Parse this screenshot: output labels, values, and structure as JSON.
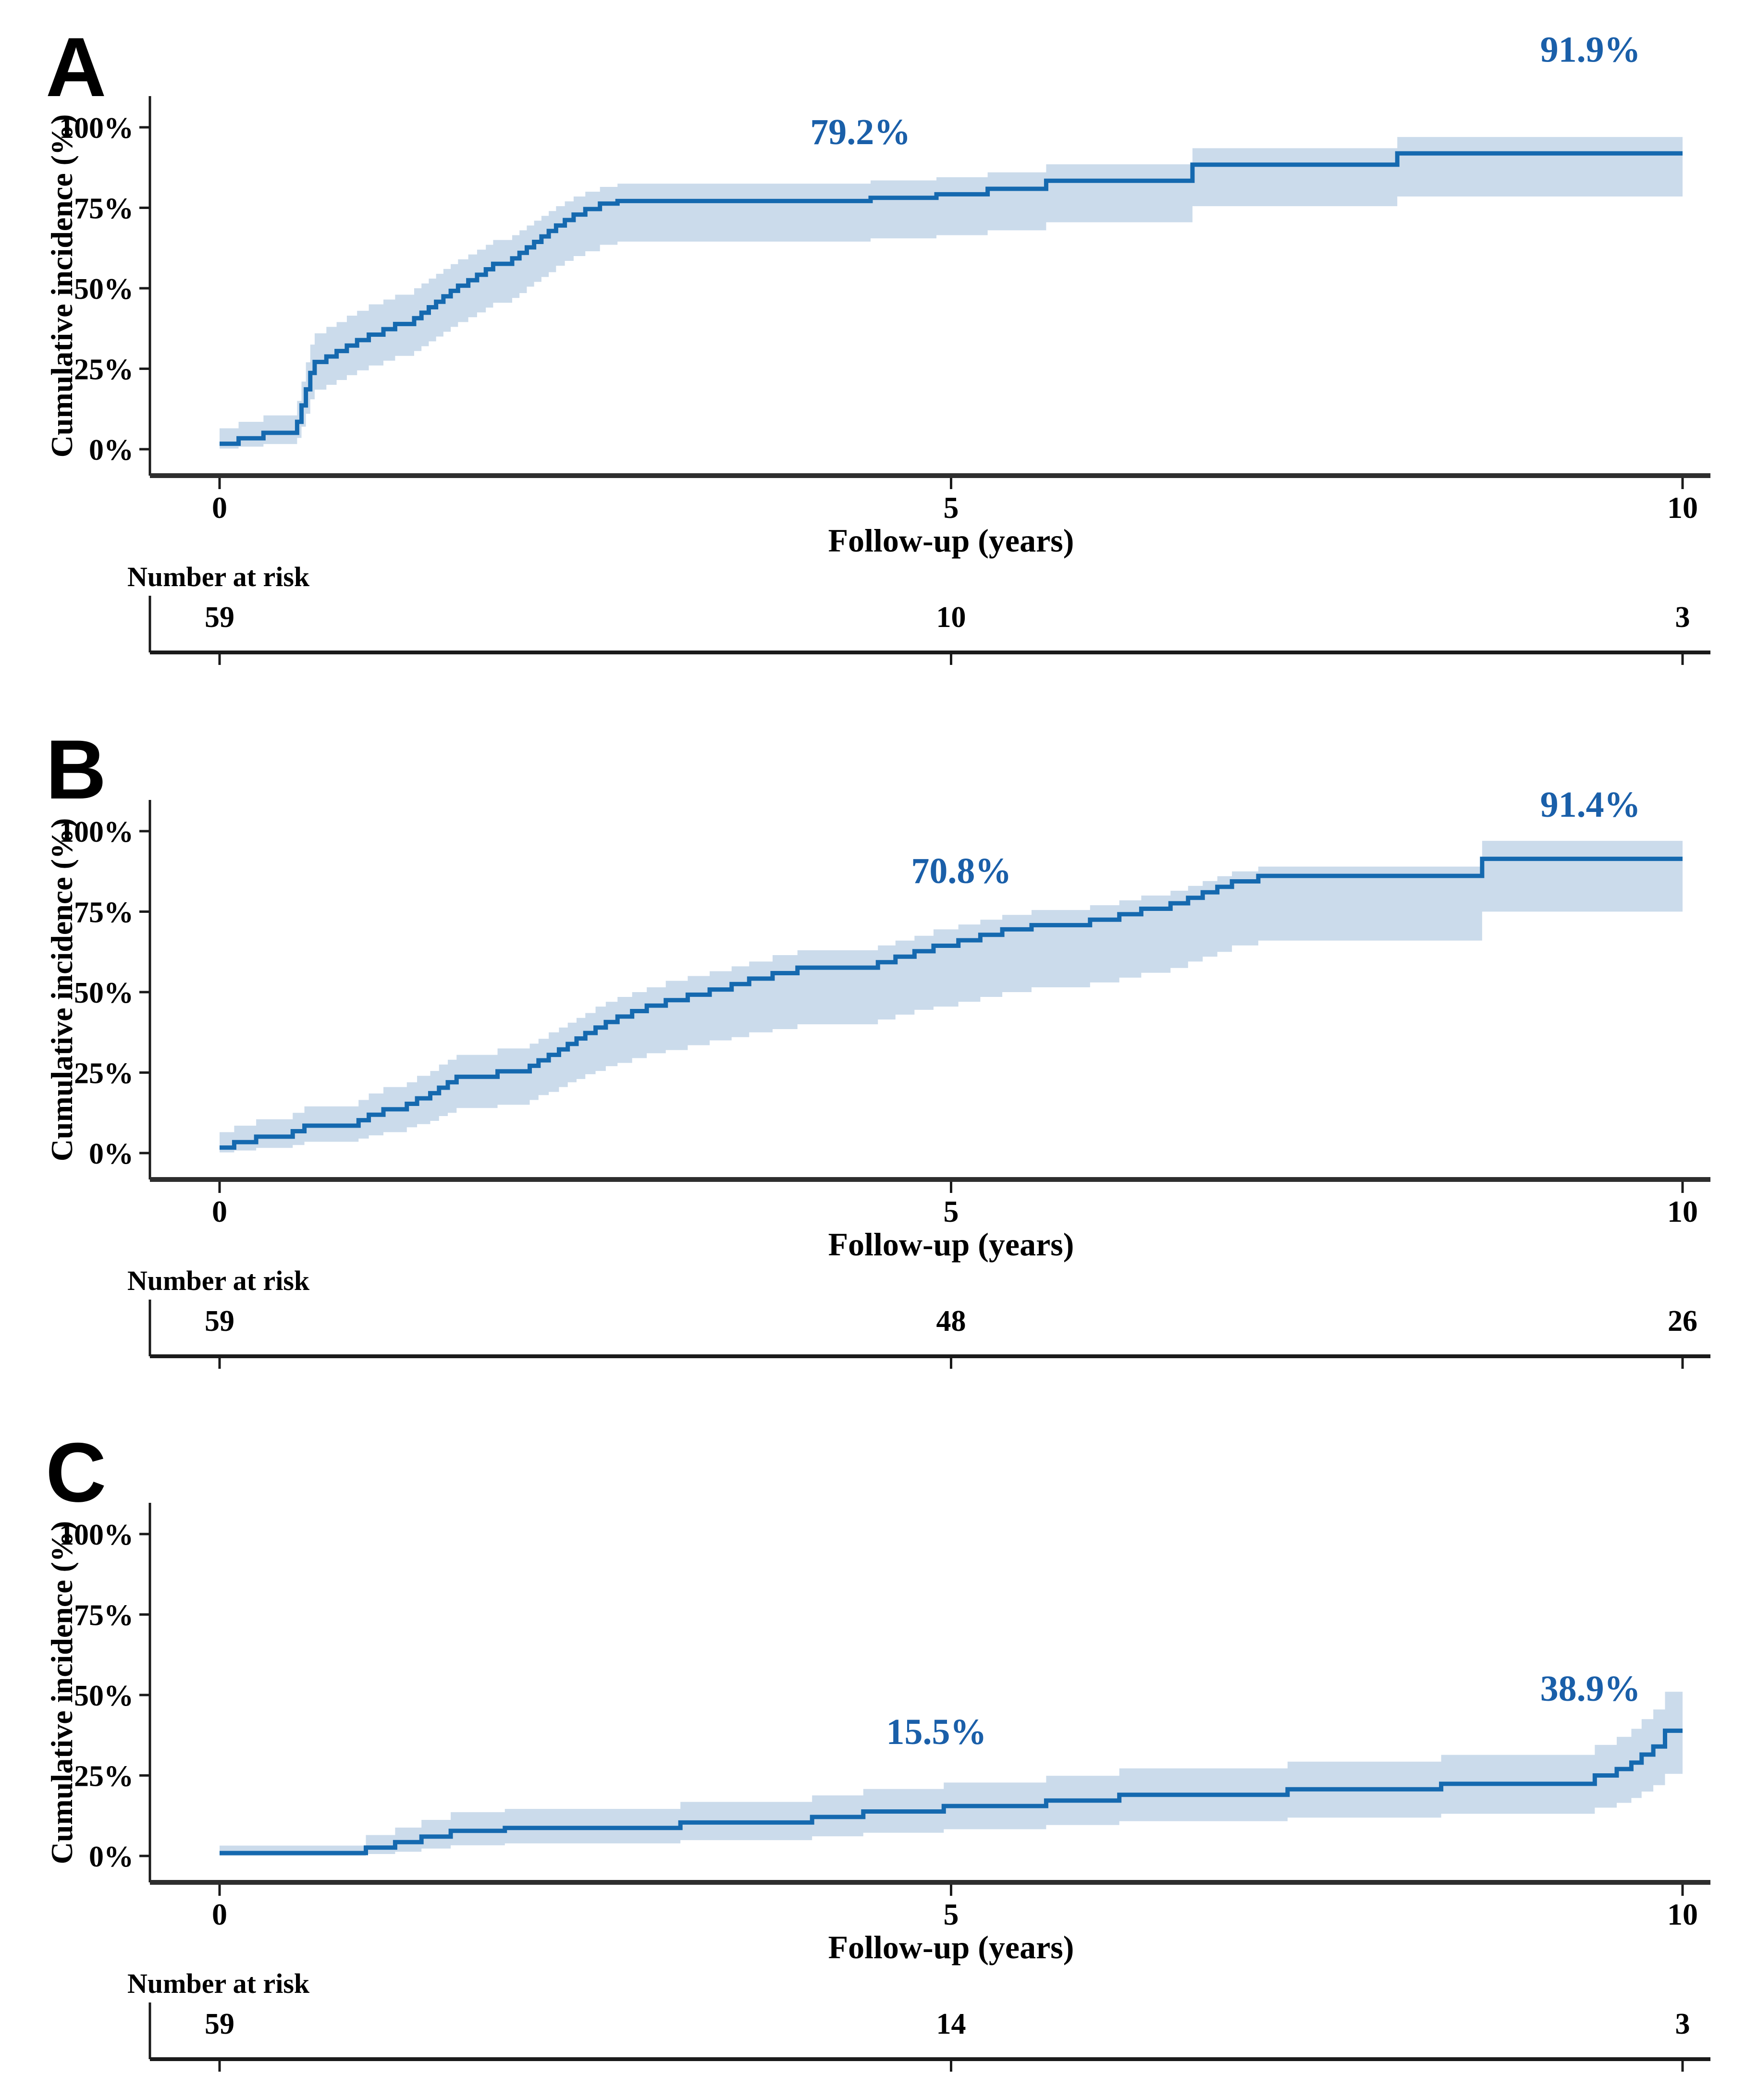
{
  "figure": {
    "background": "#ffffff"
  },
  "colors": {
    "line": "#1569af",
    "band": "#c8d9ea",
    "annotation": "#1a5fa9",
    "axis": "#2e2e2e",
    "risk_axis": "#1a1a1a",
    "text": "#000000"
  },
  "chart_data": [
    {
      "type": "line",
      "panel_letter": "A",
      "ylabel": "Cumulative incidence (%)",
      "xlabel": "Follow-up (years)",
      "yticks": [
        "0%",
        "25%",
        "50%",
        "75%",
        "100%"
      ],
      "ytick_values": [
        0,
        25,
        50,
        75,
        100
      ],
      "xticks": [
        "0",
        "5",
        "10"
      ],
      "xtick_values": [
        0,
        5,
        10
      ],
      "xlim": [
        0,
        10
      ],
      "ylim": [
        0,
        100
      ],
      "grid": false,
      "legend": false,
      "annotations": [
        {
          "text": "79.2%",
          "t": 4.38,
          "pct": 94.8
        },
        {
          "text": "91.9%",
          "t": 9.37,
          "pct": 120.4
        }
      ],
      "number_at_risk": {
        "label": "Number at risk",
        "times": [
          0,
          5,
          10
        ],
        "values": [
          "59",
          "10",
          "3"
        ]
      },
      "series": [
        {
          "name": "cumulative-incidence",
          "points": [
            [
              0,
              1.7,
              0.2,
              6.5
            ],
            [
              0.13,
              3.4,
              0.8,
              8.5
            ],
            [
              0.3,
              5.1,
              1.6,
              10.5
            ],
            [
              0.53,
              8.5,
              3.5,
              15
            ],
            [
              0.56,
              13.6,
              7,
              21
            ],
            [
              0.59,
              18.6,
              11,
              27
            ],
            [
              0.62,
              23.7,
              15.5,
              32.5
            ],
            [
              0.65,
              27.1,
              18.5,
              36
            ],
            [
              0.73,
              28.8,
              20,
              38
            ],
            [
              0.8,
              30.5,
              21.5,
              39.5
            ],
            [
              0.87,
              32.2,
              23,
              41.5
            ],
            [
              0.94,
              33.9,
              24.5,
              43
            ],
            [
              1.02,
              35.6,
              26,
              45
            ],
            [
              1.12,
              37.3,
              27.5,
              46.5
            ],
            [
              1.2,
              38.9,
              29,
              48
            ],
            [
              1.33,
              40.7,
              30.5,
              50
            ],
            [
              1.38,
              42.4,
              32,
              51.5
            ],
            [
              1.43,
              44.1,
              33.5,
              53
            ],
            [
              1.48,
              45.8,
              35,
              54.5
            ],
            [
              1.53,
              47.5,
              36.5,
              56
            ],
            [
              1.58,
              49.2,
              38,
              57.5
            ],
            [
              1.63,
              50.8,
              39.5,
              59
            ],
            [
              1.7,
              52.5,
              41,
              60.5
            ],
            [
              1.76,
              54.2,
              42.5,
              62
            ],
            [
              1.82,
              55.9,
              44,
              63.5
            ],
            [
              1.87,
              57.6,
              45.5,
              65
            ],
            [
              2.0,
              59.3,
              47,
              66.5
            ],
            [
              2.05,
              61.0,
              48.5,
              68
            ],
            [
              2.1,
              62.7,
              50.5,
              69.5
            ],
            [
              2.15,
              64.4,
              52,
              71
            ],
            [
              2.2,
              66.1,
              53.5,
              72.5
            ],
            [
              2.25,
              67.8,
              55,
              74
            ],
            [
              2.3,
              69.5,
              57,
              75.5
            ],
            [
              2.36,
              71.2,
              58.5,
              77
            ],
            [
              2.42,
              72.9,
              60,
              78.5
            ],
            [
              2.5,
              74.6,
              61.5,
              80
            ],
            [
              2.6,
              76.3,
              63.5,
              81.5
            ],
            [
              2.72,
              77.1,
              64.5,
              82.5
            ],
            [
              4.45,
              78.1,
              65.5,
              83.5
            ],
            [
              4.9,
              79.2,
              66.5,
              84.5
            ],
            [
              5.25,
              80.9,
              68,
              86
            ],
            [
              5.65,
              83.4,
              70.5,
              88.5
            ],
            [
              6.65,
              88.4,
              75.5,
              93.5
            ],
            [
              8.05,
              91.9,
              78.5,
              97
            ]
          ]
        }
      ]
    },
    {
      "type": "line",
      "panel_letter": "B",
      "ylabel": "Cumulative incidence (%)",
      "xlabel": "Follow-up (years)",
      "yticks": [
        "0%",
        "25%",
        "50%",
        "75%",
        "100%"
      ],
      "ytick_values": [
        0,
        25,
        50,
        75,
        100
      ],
      "xticks": [
        "0",
        "5",
        "10"
      ],
      "xtick_values": [
        0,
        5,
        10
      ],
      "xlim": [
        0,
        10
      ],
      "ylim": [
        0,
        100
      ],
      "grid": false,
      "legend": false,
      "annotations": [
        {
          "text": "70.8%",
          "t": 5.07,
          "pct": 83.9
        },
        {
          "text": "91.4%",
          "t": 9.37,
          "pct": 104.5
        }
      ],
      "number_at_risk": {
        "label": "Number at risk",
        "times": [
          0,
          5,
          10
        ],
        "values": [
          "59",
          "48",
          "26"
        ]
      },
      "series": [
        {
          "name": "cumulative-incidence",
          "points": [
            [
              0,
              1.7,
              0.2,
              6.5
            ],
            [
              0.1,
              3.4,
              0.8,
              8.5
            ],
            [
              0.25,
              5.1,
              1.6,
              10.5
            ],
            [
              0.5,
              6.8,
              2.5,
              12.5
            ],
            [
              0.58,
              8.5,
              3.5,
              14.5
            ],
            [
              0.95,
              10.2,
              4.5,
              16.5
            ],
            [
              1.02,
              11.9,
              5.5,
              18.5
            ],
            [
              1.12,
              13.6,
              6.5,
              20.5
            ],
            [
              1.28,
              15.3,
              8,
              22
            ],
            [
              1.35,
              17.0,
              9,
              24
            ],
            [
              1.44,
              18.6,
              10,
              25.5
            ],
            [
              1.5,
              20.3,
              11.5,
              27.5
            ],
            [
              1.56,
              22.0,
              12.5,
              29
            ],
            [
              1.62,
              23.7,
              14,
              30.5
            ],
            [
              1.9,
              25.4,
              15,
              32.5
            ],
            [
              2.12,
              27.1,
              16.5,
              34
            ],
            [
              2.18,
              28.8,
              18,
              35.5
            ],
            [
              2.25,
              30.5,
              19,
              37.5
            ],
            [
              2.32,
              32.2,
              20.5,
              39
            ],
            [
              2.38,
              33.9,
              22,
              40.5
            ],
            [
              2.44,
              35.6,
              23,
              42
            ],
            [
              2.5,
              37.3,
              24.5,
              43.5
            ],
            [
              2.57,
              39.0,
              25.5,
              45.5
            ],
            [
              2.64,
              40.7,
              27,
              47
            ],
            [
              2.72,
              42.4,
              28,
              48.5
            ],
            [
              2.82,
              44.1,
              29.5,
              50
            ],
            [
              2.92,
              45.8,
              31,
              51.5
            ],
            [
              3.05,
              47.5,
              32,
              53.5
            ],
            [
              3.2,
              49.2,
              33.5,
              55
            ],
            [
              3.35,
              50.8,
              35,
              56.5
            ],
            [
              3.5,
              52.5,
              36,
              58
            ],
            [
              3.62,
              54.2,
              37.5,
              59.5
            ],
            [
              3.78,
              55.9,
              38.5,
              61.5
            ],
            [
              3.95,
              57.6,
              40,
              63
            ],
            [
              4.5,
              59.3,
              41.5,
              64.5
            ],
            [
              4.62,
              61.0,
              43,
              66
            ],
            [
              4.75,
              62.7,
              44.5,
              67.5
            ],
            [
              4.88,
              64.4,
              45.5,
              69.5
            ],
            [
              5.05,
              66.1,
              47,
              71
            ],
            [
              5.2,
              67.8,
              48.5,
              72.5
            ],
            [
              5.35,
              69.5,
              50,
              74
            ],
            [
              5.55,
              70.8,
              51.5,
              75.5
            ],
            [
              5.95,
              72.5,
              53,
              77
            ],
            [
              6.15,
              74.2,
              54.5,
              78.5
            ],
            [
              6.3,
              75.9,
              56,
              80
            ],
            [
              6.5,
              77.6,
              57.5,
              81.5
            ],
            [
              6.62,
              79.3,
              59.5,
              83
            ],
            [
              6.72,
              81.0,
              61,
              84.5
            ],
            [
              6.82,
              82.7,
              62.5,
              86
            ],
            [
              6.92,
              84.4,
              64.5,
              87.5
            ],
            [
              7.1,
              86.1,
              66,
              89
            ],
            [
              8.63,
              91.4,
              75,
              97
            ]
          ]
        }
      ]
    },
    {
      "type": "line",
      "panel_letter": "C",
      "ylabel": "Cumulative incidence (%)",
      "xlabel": "Follow-up (years)",
      "yticks": [
        "0%",
        "25%",
        "50%",
        "75%",
        "100%"
      ],
      "ytick_values": [
        0,
        25,
        50,
        75,
        100
      ],
      "xticks": [
        "0",
        "5",
        "10"
      ],
      "xtick_values": [
        0,
        5,
        10
      ],
      "xlim": [
        0,
        10
      ],
      "ylim": [
        0,
        100
      ],
      "grid": false,
      "legend": false,
      "annotations": [
        {
          "text": "15.5%",
          "t": 4.9,
          "pct": 34.8
        },
        {
          "text": "38.9%",
          "t": 9.37,
          "pct": 48.2
        }
      ],
      "number_at_risk": {
        "label": "Number at risk",
        "times": [
          0,
          5,
          10
        ],
        "values": [
          "59",
          "14",
          "3"
        ]
      },
      "series": [
        {
          "name": "cumulative-incidence",
          "points": [
            [
              0,
              0.9,
              0.05,
              3.2
            ],
            [
              1.0,
              2.6,
              0.6,
              6.5
            ],
            [
              1.2,
              4.3,
              1.3,
              8.8
            ],
            [
              1.38,
              6.0,
              2.3,
              11.2
            ],
            [
              1.58,
              7.8,
              3.3,
              13.6
            ],
            [
              1.95,
              8.7,
              3.9,
              14.6
            ],
            [
              3.15,
              10.4,
              4.9,
              16.8
            ],
            [
              4.05,
              12.1,
              6.1,
              18.8
            ],
            [
              4.4,
              13.8,
              7.2,
              20.8
            ],
            [
              4.95,
              15.5,
              8.3,
              22.8
            ],
            [
              5.65,
              17.2,
              9.6,
              24.9
            ],
            [
              6.15,
              19.0,
              10.8,
              27.2
            ],
            [
              7.3,
              20.7,
              11.9,
              29.3
            ],
            [
              8.35,
              22.4,
              13.1,
              31.4
            ],
            [
              9.4,
              25.0,
              15,
              34.5
            ],
            [
              9.55,
              27.0,
              16.5,
              37
            ],
            [
              9.65,
              29.0,
              18,
              39.5
            ],
            [
              9.72,
              31.5,
              20,
              42.5
            ],
            [
              9.8,
              34.0,
              22,
              45.5
            ],
            [
              9.88,
              38.9,
              25.5,
              51
            ]
          ]
        }
      ]
    }
  ]
}
